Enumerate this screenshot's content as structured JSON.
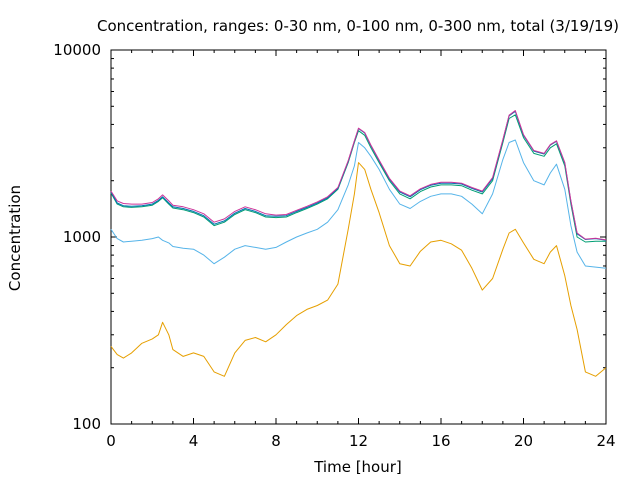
{
  "chart_data": {
    "type": "line",
    "title": "Concentration, ranges: 0-30 nm, 0-100 nm, 0-300 nm, total (3/19/19)",
    "xlabel": "Time [hour]",
    "ylabel": "Concentration",
    "xlim": [
      0,
      24
    ],
    "ylim": [
      100,
      10000
    ],
    "yscale": "log",
    "xticks": [
      0,
      4,
      8,
      12,
      16,
      20,
      24
    ],
    "xtick_labels": [
      "0",
      "4",
      "8",
      "12",
      "16",
      "20",
      "24"
    ],
    "yticks": [
      100,
      1000,
      10000
    ],
    "ytick_labels": [
      "100",
      "1000",
      "10000"
    ],
    "grid": false,
    "x": [
      0,
      0.3,
      0.6,
      1,
      1.5,
      2,
      2.3,
      2.5,
      2.8,
      3,
      3.5,
      4,
      4.5,
      5,
      5.5,
      6,
      6.5,
      7,
      7.5,
      8,
      8.5,
      9,
      9.5,
      10,
      10.5,
      11,
      11.5,
      11.8,
      12,
      12.3,
      12.6,
      13,
      13.5,
      14,
      14.5,
      15,
      15.5,
      16,
      16.5,
      17,
      17.5,
      18,
      18.5,
      19,
      19.3,
      19.6,
      20,
      20.5,
      21,
      21.3,
      21.6,
      22,
      22.3,
      22.6,
      23,
      23.5,
      24
    ],
    "series": [
      {
        "color": "#e69f00",
        "values": [
          260,
          235,
          225,
          240,
          270,
          285,
          300,
          350,
          300,
          250,
          230,
          240,
          230,
          190,
          180,
          240,
          280,
          290,
          275,
          300,
          340,
          380,
          410,
          430,
          460,
          560,
          1100,
          1700,
          2500,
          2300,
          1800,
          1350,
          900,
          720,
          700,
          840,
          940,
          960,
          920,
          850,
          680,
          520,
          600,
          860,
          1050,
          1100,
          930,
          760,
          720,
          830,
          900,
          620,
          430,
          320,
          190,
          180,
          200
        ]
      },
      {
        "color": "#56b4e9",
        "values": [
          1100,
          980,
          940,
          950,
          960,
          980,
          1000,
          960,
          930,
          890,
          870,
          860,
          800,
          720,
          780,
          860,
          900,
          880,
          860,
          880,
          940,
          1000,
          1050,
          1100,
          1200,
          1400,
          1900,
          2400,
          3200,
          3000,
          2700,
          2300,
          1800,
          1500,
          1420,
          1550,
          1650,
          1700,
          1700,
          1650,
          1500,
          1330,
          1700,
          2600,
          3200,
          3300,
          2500,
          2000,
          1900,
          2200,
          2450,
          1800,
          1150,
          830,
          700,
          690,
          680
        ]
      },
      {
        "color": "#009e73",
        "values": [
          1720,
          1500,
          1450,
          1440,
          1450,
          1480,
          1550,
          1620,
          1500,
          1430,
          1400,
          1350,
          1280,
          1150,
          1200,
          1320,
          1400,
          1350,
          1280,
          1270,
          1280,
          1350,
          1420,
          1500,
          1600,
          1800,
          2500,
          3200,
          3700,
          3500,
          3000,
          2500,
          2000,
          1700,
          1600,
          1750,
          1850,
          1900,
          1900,
          1880,
          1780,
          1700,
          2000,
          3200,
          4300,
          4500,
          3400,
          2800,
          2700,
          3000,
          3150,
          2400,
          1500,
          1000,
          940,
          950,
          950
        ]
      },
      {
        "color": "#0072b2",
        "values": [
          1740,
          1520,
          1470,
          1460,
          1470,
          1500,
          1570,
          1640,
          1520,
          1450,
          1420,
          1370,
          1300,
          1170,
          1220,
          1340,
          1420,
          1370,
          1300,
          1290,
          1300,
          1370,
          1440,
          1520,
          1620,
          1820,
          2540,
          3250,
          3800,
          3600,
          3080,
          2560,
          2040,
          1740,
          1640,
          1790,
          1890,
          1940,
          1940,
          1920,
          1820,
          1740,
          2050,
          3300,
          4450,
          4700,
          3500,
          2880,
          2780,
          3100,
          3250,
          2480,
          1550,
          1040,
          970,
          980,
          960
        ]
      },
      {
        "color": "#cc3399",
        "values": [
          1760,
          1560,
          1510,
          1500,
          1500,
          1530,
          1600,
          1680,
          1560,
          1480,
          1450,
          1400,
          1330,
          1200,
          1250,
          1370,
          1450,
          1400,
          1330,
          1310,
          1320,
          1390,
          1460,
          1540,
          1640,
          1840,
          2560,
          3270,
          3820,
          3620,
          3100,
          2580,
          2060,
          1760,
          1660,
          1810,
          1910,
          1960,
          1960,
          1940,
          1840,
          1760,
          2080,
          3320,
          4480,
          4750,
          3530,
          2900,
          2800,
          3120,
          3270,
          2500,
          1560,
          1050,
          975,
          985,
          965
        ]
      }
    ]
  }
}
